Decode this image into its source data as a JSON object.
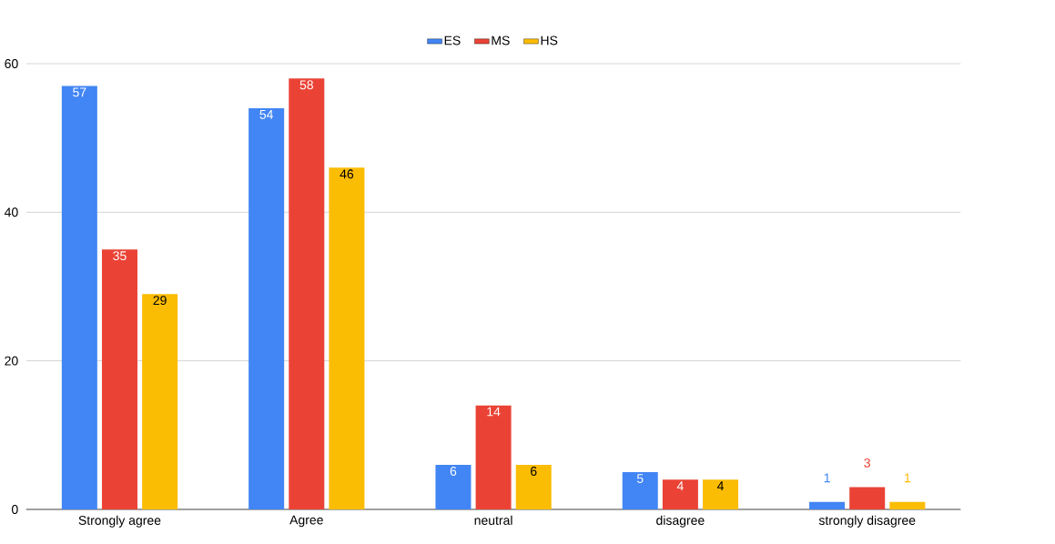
{
  "chart_data": {
    "type": "bar",
    "categories": [
      "Strongly agree",
      "Agree",
      "neutral",
      "disagree",
      "strongly disagree"
    ],
    "series": [
      {
        "name": "ES",
        "color": "#4285f4",
        "values": [
          57,
          54,
          6,
          5,
          1
        ]
      },
      {
        "name": "MS",
        "color": "#ea4335",
        "values": [
          35,
          58,
          14,
          4,
          3
        ]
      },
      {
        "name": "HS",
        "color": "#fbbc04",
        "values": [
          29,
          46,
          6,
          4,
          1
        ]
      }
    ],
    "ylim": [
      0,
      60
    ],
    "yticks": [
      0,
      20,
      40,
      60
    ],
    "grid": "y",
    "legend": "top",
    "data_labels": true
  }
}
